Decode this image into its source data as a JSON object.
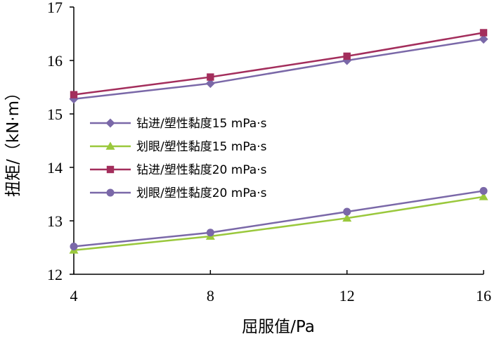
{
  "chart_data": {
    "type": "line",
    "xlabel": "屈服值/Pa",
    "ylabel": "扭矩/（kN·m）",
    "x": [
      4,
      8,
      12,
      16
    ],
    "xticks": [
      "4",
      "8",
      "12",
      "16"
    ],
    "yticks": [
      "12",
      "13",
      "14",
      "15",
      "16",
      "17"
    ],
    "xlim": [
      4,
      16
    ],
    "ylim": [
      12,
      17
    ],
    "grid": false,
    "legend_position": "center-left",
    "series": [
      {
        "name": "钻进/塑性黏度15 mPa·s",
        "values": [
          15.28,
          15.57,
          16.0,
          16.4
        ],
        "color": "#7a68a8",
        "marker": "diamond"
      },
      {
        "name": "划眼/塑性黏度15 mPa·s",
        "values": [
          12.45,
          12.71,
          13.05,
          13.45
        ],
        "color": "#9ac83c",
        "marker": "triangle"
      },
      {
        "name": "钻进/塑性黏度20 mPa·s",
        "values": [
          15.36,
          15.69,
          16.08,
          16.52
        ],
        "color": "#a32e5c",
        "marker": "square"
      },
      {
        "name": "划眼/塑性黏度20 mPa·s",
        "values": [
          12.52,
          12.78,
          13.17,
          13.56
        ],
        "color": "#7a68a8",
        "marker": "circle"
      }
    ]
  }
}
